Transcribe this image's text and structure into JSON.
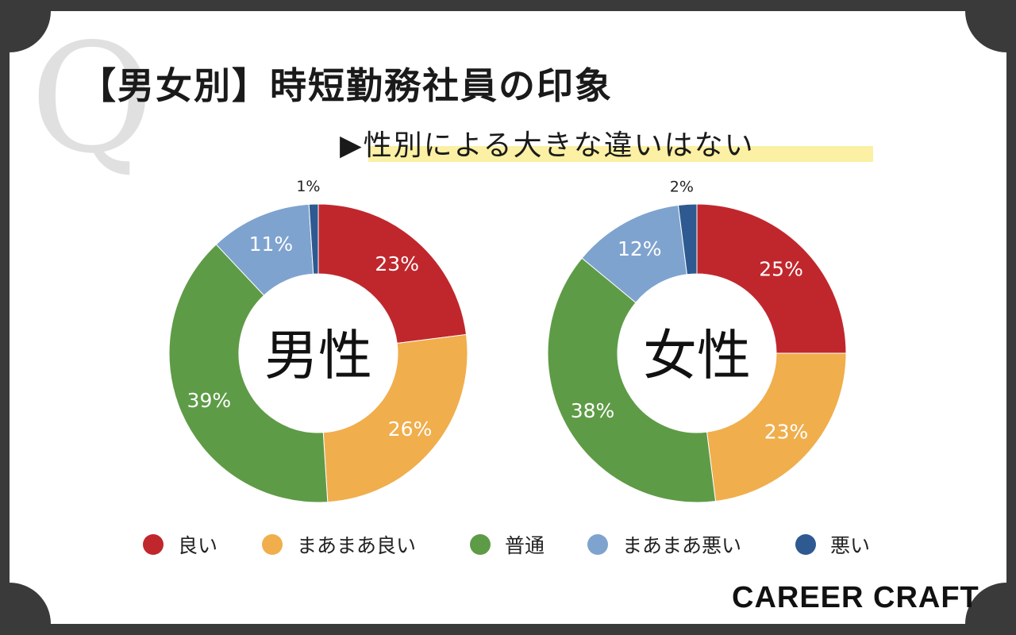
{
  "header": {
    "q_mark": "Q",
    "title": "【男女別】時短勤務社員の印象",
    "subtitle": "▶性別による大きな違いはない"
  },
  "brand": "CAREER CRAFT",
  "chart_data": {
    "type": "pie",
    "variant": "donut",
    "categories": [
      "良い",
      "まあまあ良い",
      "普通",
      "まあまあ悪い",
      "悪い"
    ],
    "colors": [
      "#c0272d",
      "#f0ae4c",
      "#5e9b46",
      "#7fa3cf",
      "#2e5a91"
    ],
    "series": [
      {
        "name": "男性",
        "values": [
          23,
          26,
          39,
          11,
          1
        ],
        "labels": [
          "23%",
          "26%",
          "39%",
          "11%",
          "1%"
        ]
      },
      {
        "name": "女性",
        "values": [
          25,
          23,
          38,
          12,
          2
        ],
        "labels": [
          "25%",
          "23%",
          "38%",
          "12%",
          "2%"
        ]
      }
    ],
    "legend_position": "bottom"
  }
}
